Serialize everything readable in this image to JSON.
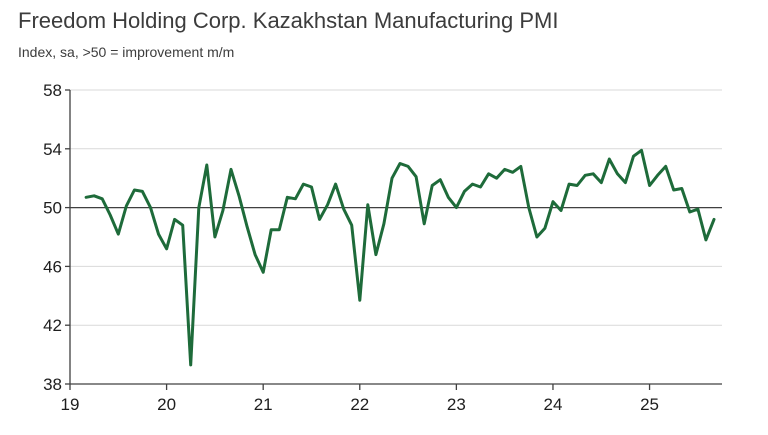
{
  "chart_data": {
    "type": "line",
    "title": "Freedom Holding Corp. Kazakhstan Manufacturing PMI",
    "subtitle": "Index, sa, >50 = improvement m/m",
    "xlabel": "",
    "ylabel": "",
    "ylim": [
      38,
      58
    ],
    "yticks": [
      "38",
      "42",
      "46",
      "50",
      "54",
      "58"
    ],
    "ytick_values": [
      38,
      42,
      46,
      50,
      54,
      58
    ],
    "xticks": [
      "19",
      "20",
      "21",
      "22",
      "23",
      "24",
      "25"
    ],
    "xtick_values": [
      2019,
      2020,
      2021,
      2022,
      2023,
      2024,
      2025
    ],
    "xlim": [
      2019,
      2025.75
    ],
    "reference_line": 50,
    "grid": "horizontal",
    "line_color": "#1e6b3a",
    "series": [
      {
        "name": "Kazakhstan Manufacturing PMI",
        "start": "2019-03",
        "values": [
          50.7,
          50.8,
          50.6,
          49.5,
          48.2,
          50.1,
          51.2,
          51.1,
          50.0,
          48.2,
          47.2,
          49.2,
          48.8,
          39.3,
          50.0,
          52.9,
          48.0,
          49.8,
          52.6,
          50.8,
          48.7,
          46.8,
          45.6,
          48.5,
          48.5,
          50.7,
          50.6,
          51.6,
          51.4,
          49.2,
          50.2,
          51.6,
          49.9,
          48.8,
          43.7,
          50.2,
          46.8,
          48.9,
          52.0,
          53.0,
          52.8,
          52.1,
          48.9,
          51.5,
          51.9,
          50.7,
          50.0,
          51.1,
          51.6,
          51.4,
          52.3,
          52.0,
          52.6,
          52.4,
          52.8,
          50.0,
          48.0,
          48.6,
          50.4,
          49.8,
          51.6,
          51.5,
          52.2,
          52.3,
          51.7,
          53.3,
          52.3,
          51.7,
          53.5,
          53.9,
          51.5,
          52.2,
          52.8,
          51.2,
          51.3,
          49.7,
          49.9,
          47.8,
          49.2
        ]
      }
    ]
  }
}
